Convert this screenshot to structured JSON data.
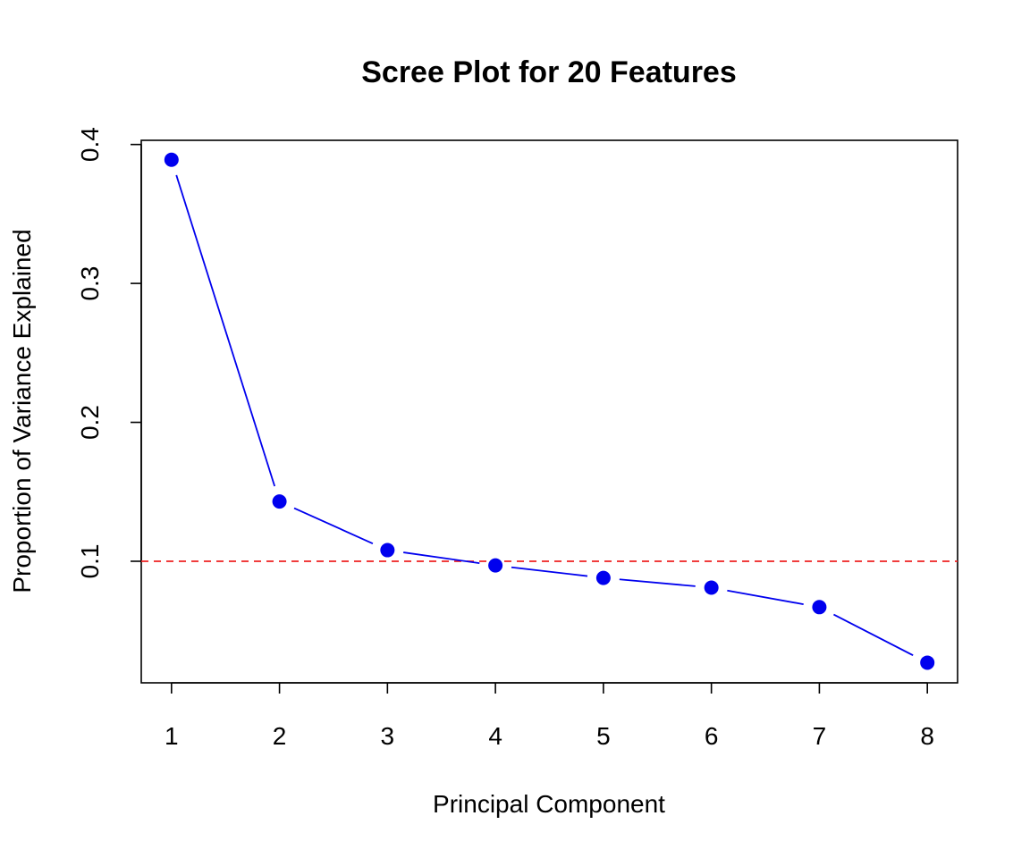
{
  "chart_data": {
    "type": "line",
    "title": "Scree Plot for 20 Features",
    "xlabel": "Principal Component",
    "ylabel": "Proportion of Variance Explained",
    "x": [
      1,
      2,
      3,
      4,
      5,
      6,
      7,
      8
    ],
    "x_tick_labels": [
      "1",
      "2",
      "3",
      "4",
      "5",
      "6",
      "7",
      "8"
    ],
    "y_ticks": [
      0.1,
      0.2,
      0.3,
      0.4
    ],
    "y_tick_labels": [
      "0.1",
      "0.2",
      "0.3",
      "0.4"
    ],
    "xlim": [
      0.72,
      8.28
    ],
    "ylim": [
      0.0125,
      0.403
    ],
    "series": [
      {
        "values": [
          0.389,
          0.143,
          0.108,
          0.097,
          0.088,
          0.081,
          0.067,
          0.027
        ],
        "color": "#0000ee",
        "marker": "filled-circle",
        "line_style": "solid-gapped"
      }
    ],
    "reference_line": {
      "y": 0.1,
      "color": "#ee2222",
      "style": "dashed"
    },
    "grid": false,
    "legend": "none"
  }
}
